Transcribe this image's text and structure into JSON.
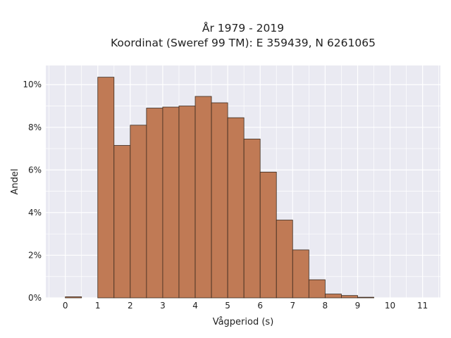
{
  "chart_data": {
    "type": "bar",
    "title": "År 1979 - 2019",
    "subtitle": "Koordinat (Sweref 99 TM): E 359439, N 6261065",
    "xlabel": "Vågperiod (s)",
    "ylabel": "Andel",
    "xlim": [
      -0.6,
      11.55
    ],
    "ylim": [
      0,
      0.109
    ],
    "xticks": [
      0,
      1,
      2,
      3,
      4,
      5,
      6,
      7,
      8,
      9,
      10,
      11
    ],
    "yticks": [
      0,
      0.02,
      0.04,
      0.06,
      0.08,
      0.1
    ],
    "ytick_labels": [
      "0%",
      "2%",
      "4%",
      "6%",
      "8%",
      "10%"
    ],
    "grid": true,
    "bar_color": "#c07a55",
    "bar_edge_color": "#3a2a1e",
    "background_color": "#eaeaf2",
    "bins": [
      {
        "start": 0.0,
        "end": 0.5,
        "value": 0.0005
      },
      {
        "start": 1.0,
        "end": 1.5,
        "value": 0.1035
      },
      {
        "start": 1.5,
        "end": 2.0,
        "value": 0.0715
      },
      {
        "start": 2.0,
        "end": 2.5,
        "value": 0.081
      },
      {
        "start": 2.5,
        "end": 3.0,
        "value": 0.089
      },
      {
        "start": 3.0,
        "end": 3.5,
        "value": 0.0895
      },
      {
        "start": 3.5,
        "end": 4.0,
        "value": 0.09
      },
      {
        "start": 4.0,
        "end": 4.5,
        "value": 0.0945
      },
      {
        "start": 4.5,
        "end": 5.0,
        "value": 0.0915
      },
      {
        "start": 5.0,
        "end": 5.5,
        "value": 0.0845
      },
      {
        "start": 5.5,
        "end": 6.0,
        "value": 0.0745
      },
      {
        "start": 6.0,
        "end": 6.5,
        "value": 0.059
      },
      {
        "start": 6.5,
        "end": 7.0,
        "value": 0.0365
      },
      {
        "start": 7.0,
        "end": 7.5,
        "value": 0.0225
      },
      {
        "start": 7.5,
        "end": 8.0,
        "value": 0.0085
      },
      {
        "start": 8.0,
        "end": 8.5,
        "value": 0.0018
      },
      {
        "start": 8.5,
        "end": 9.0,
        "value": 0.0011
      },
      {
        "start": 9.0,
        "end": 9.5,
        "value": 0.0003
      }
    ]
  }
}
